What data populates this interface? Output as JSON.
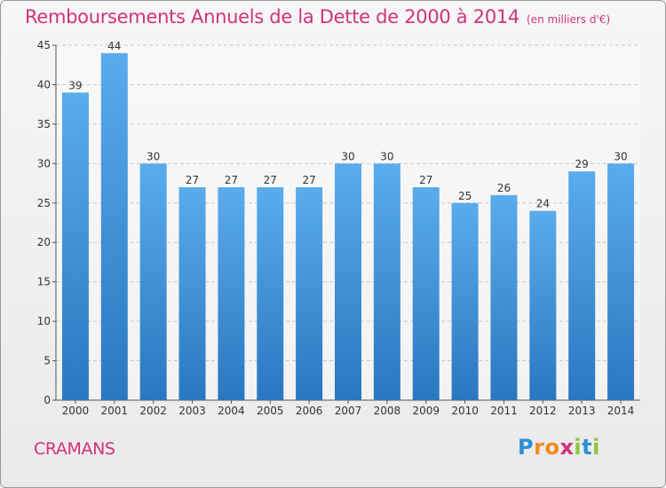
{
  "chart_data": {
    "type": "bar",
    "title": "Remboursements Annuels de la Dette de 2000 à 2014",
    "unit": "(en milliers d'€)",
    "categories": [
      "2000",
      "2001",
      "2002",
      "2003",
      "2004",
      "2005",
      "2006",
      "2007",
      "2008",
      "2009",
      "2010",
      "2011",
      "2012",
      "2013",
      "2014"
    ],
    "values": [
      39,
      44,
      30,
      27,
      27,
      27,
      27,
      30,
      30,
      27,
      25,
      26,
      24,
      29,
      30
    ],
    "ylim": [
      0,
      45
    ],
    "yticks": [
      0,
      5,
      10,
      15,
      20,
      25,
      30,
      35,
      40,
      45
    ],
    "grid": true,
    "bar_color": "#3f8fd8"
  },
  "commune": "CRAMANS",
  "logo": {
    "letters": [
      "P",
      "r",
      "o",
      "x",
      "i",
      "t",
      "i"
    ],
    "colors": [
      "#2a8fd6",
      "#f08a1c",
      "#f08a1c",
      "#d2327a",
      "#8cc63f",
      "#2a8fd6",
      "#8cc63f"
    ]
  }
}
